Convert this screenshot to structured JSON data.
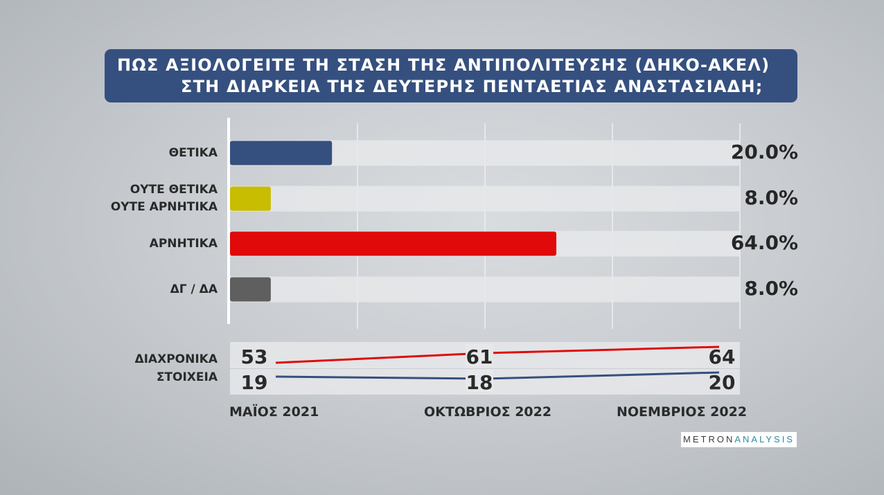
{
  "title": {
    "line1": "ΠΩΣ ΑΞΙΟΛΟΓΕΙΤΕ ΤΗ ΣΤΑΣΗ ΤΗΣ ΑΝΤΙΠΟΛΙΤΕΥΣΗΣ (ΔΗΚΟ-ΑΚΕΛ)",
    "line2": "ΣΤΗ ΔΙΑΡΚΕΙΑ ΤΗΣ ΔΕΥΤΕΡΗΣ ΠΕΝΤΑΕΤΙΑΣ ΑΝΑΣΤΑΣΙΑΔΗ;"
  },
  "chart_data": [
    {
      "type": "bar",
      "orientation": "horizontal",
      "categories": [
        [
          "ΘΕΤΙΚΑ"
        ],
        [
          "ΟΥΤΕ ΘΕΤΙΚΑ",
          "ΟΥΤΕ ΑΡΝΗΤΙΚΑ"
        ],
        [
          "ΑΡΝΗΤΙΚΑ"
        ],
        [
          "ΔΓ / ΔΑ"
        ]
      ],
      "values": [
        20.0,
        8.0,
        64.0,
        8.0
      ],
      "value_labels": [
        "20.0%",
        "8.0%",
        "64.0%",
        "8.0%"
      ],
      "colors": [
        "#35507f",
        "#c8bd00",
        "#e00a0a",
        "#5f5f5f"
      ],
      "xlim": [
        0,
        100
      ],
      "grid": true
    },
    {
      "type": "line",
      "caption": [
        "ΔΙΑΧΡΟΝΙΚΑ",
        "ΣΤΟΙΧΕΙΑ"
      ],
      "x": [
        "ΜΑΪΟΣ 2021",
        "ΟΚΤΩΒΡΙΟΣ 2022",
        "ΝΟΕΜΒΡΙΟΣ 2022"
      ],
      "series": [
        {
          "values": [
            53,
            61,
            64
          ],
          "color": "#e00a0a"
        },
        {
          "values": [
            19,
            18,
            20
          ],
          "color": "#35507f"
        }
      ]
    }
  ],
  "logo": {
    "part1": "METRON",
    "part2": "ANALYSIS"
  }
}
